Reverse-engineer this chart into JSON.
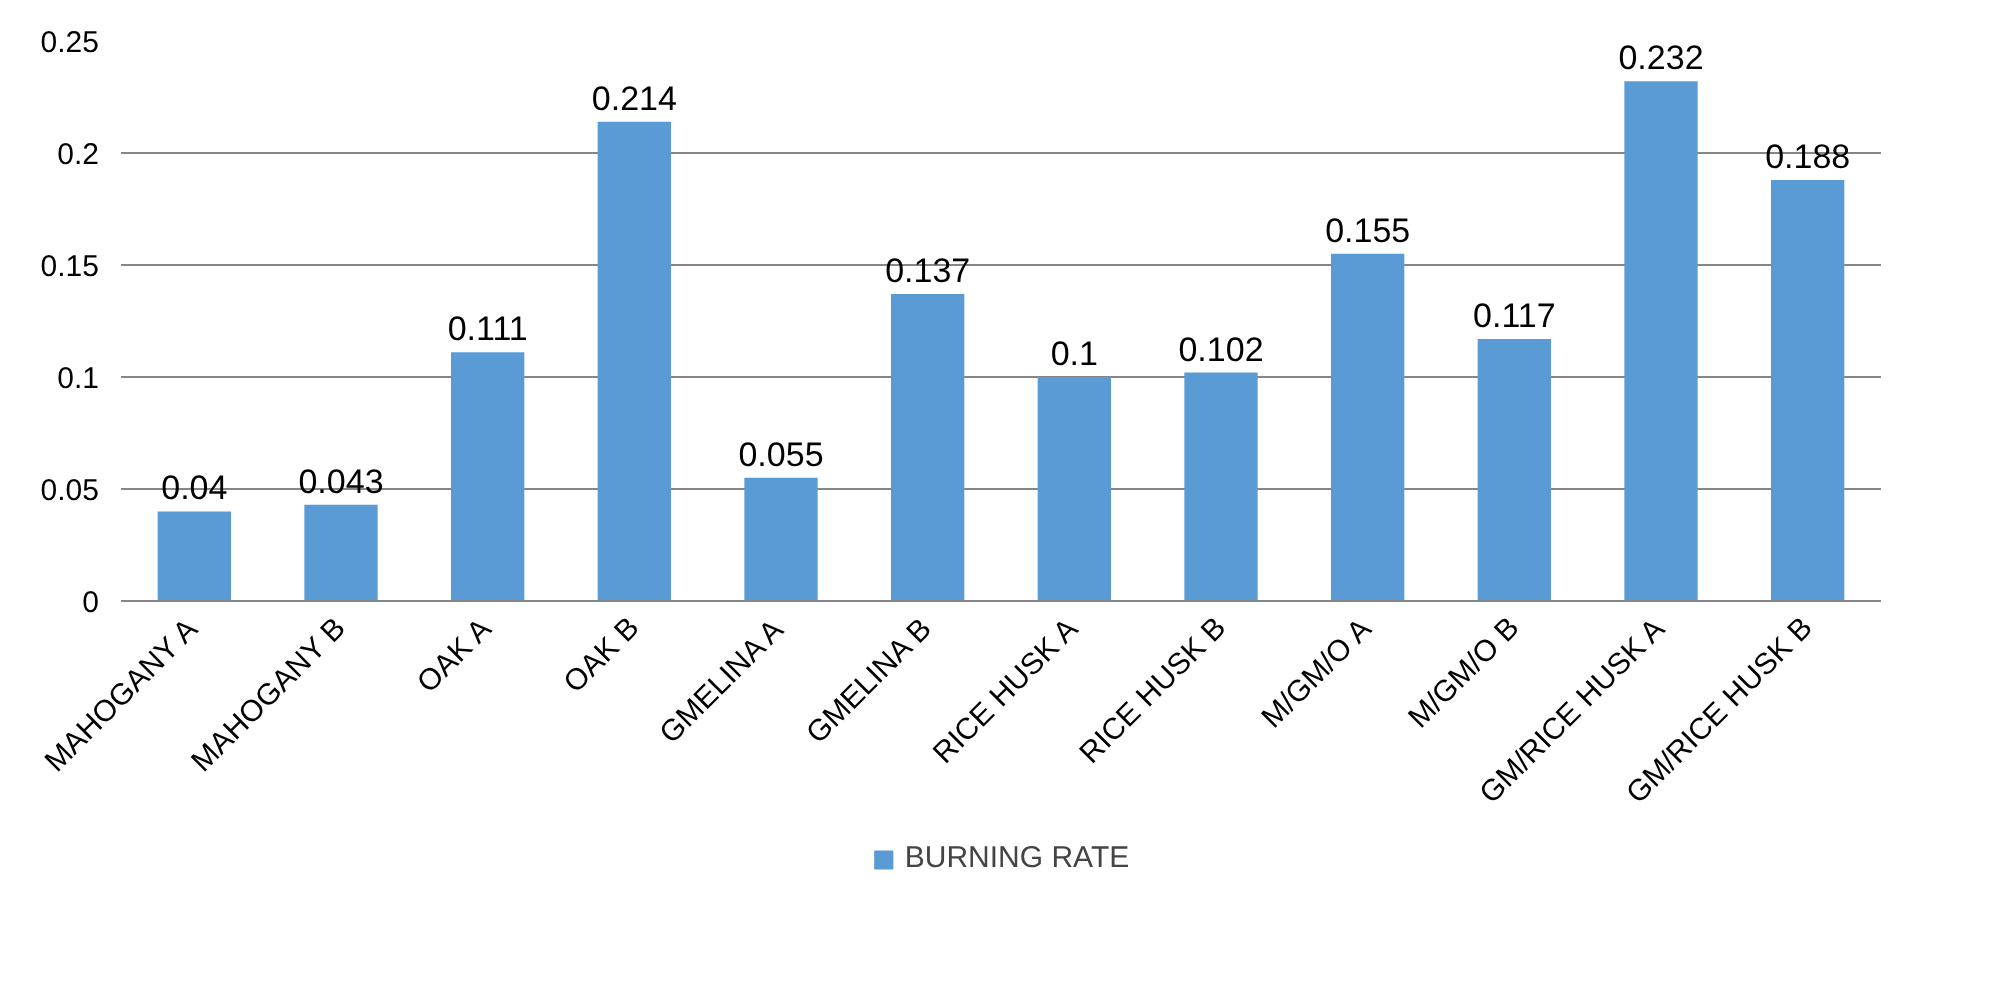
{
  "chart_data": {
    "type": "bar",
    "categories": [
      "MAHOGANY A",
      "MAHOGANY B",
      "OAK A",
      "OAK B",
      "GMELINA A",
      "GMELINA B",
      "RICE HUSK A",
      "RICE HUSK B",
      "M/GM/O A",
      "M/GM/O B",
      "GM/RICE HUSK A",
      "GM/RICE HUSK B"
    ],
    "series": [
      {
        "name": "BURNING RATE",
        "color": "#5b9bd5",
        "values": [
          0.04,
          0.043,
          0.111,
          0.214,
          0.055,
          0.137,
          0.1,
          0.102,
          0.155,
          0.117,
          0.232,
          0.188
        ]
      }
    ],
    "ylim": [
      0,
      0.25
    ],
    "yticks": [
      0,
      0.05,
      0.1,
      0.15,
      0.2,
      0.25
    ],
    "grid": "y",
    "legend": "bottom",
    "data_labels": true
  }
}
